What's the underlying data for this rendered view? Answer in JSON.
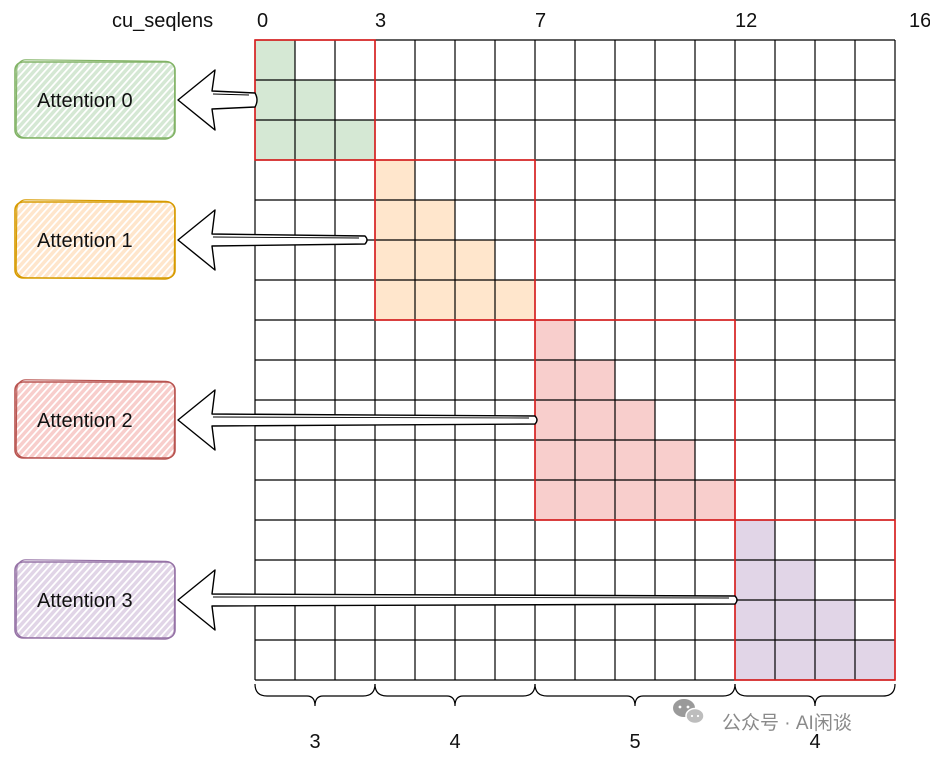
{
  "header_label": "cu_seqlens",
  "cu_seqlens": [
    0,
    3,
    7,
    12,
    16
  ],
  "total_tokens": 16,
  "sequences": [
    {
      "label": "Attention 0",
      "length": "3",
      "color": "#d5e8d4",
      "border": "#82b366",
      "fill": "#d5e8d4"
    },
    {
      "label": "Attention 1",
      "length": "4",
      "color": "#ffe6cc",
      "border": "#d79b00",
      "fill": "#ffe6cc"
    },
    {
      "label": "Attention 2",
      "length": "5",
      "color": "#f8cecc",
      "border": "#b85450",
      "fill": "#f8cecc"
    },
    {
      "label": "Attention 3",
      "length": "4",
      "color": "#e1d5e7",
      "border": "#9673a6",
      "fill": "#e1d5e7"
    }
  ],
  "block_border_color": "#e02020",
  "watermark": "公众号 · AI闲谈"
}
